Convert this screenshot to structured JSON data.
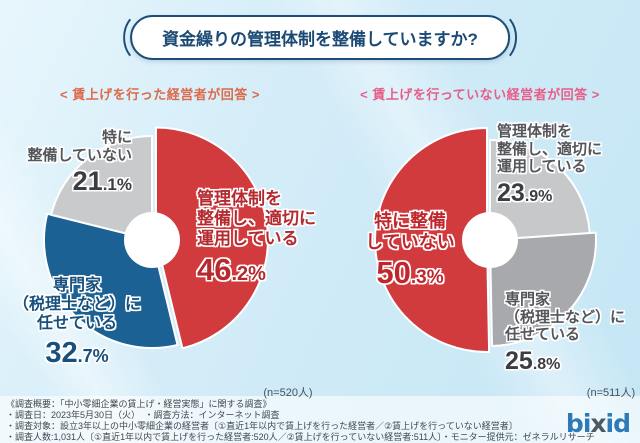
{
  "title": "資金繰りの管理体制を整備していますか?",
  "groups": [
    {
      "heading": "< 賃上げを行った経営者が回答 >",
      "heading_color": "#dd6a4b",
      "n_label": "(n=520人)",
      "callouts": {
        "gray": {
          "lines": [
            "特に",
            "整備していない"
          ],
          "pct_main": "21",
          "pct_frac": ".1%"
        },
        "red": {
          "lines": [
            "管理体制を",
            "整備し、適切に",
            "運用している"
          ],
          "pct_main": "46",
          "pct_frac": ".2%"
        },
        "blue": {
          "lines": [
            "専門家",
            "（税理士など）に",
            "任せている"
          ],
          "pct_main": "32",
          "pct_frac": ".7%"
        }
      }
    },
    {
      "heading": "< 賃上げを行っていない経営者が回答 >",
      "heading_color": "#e75e88",
      "n_label": "(n=511人)",
      "callouts": {
        "gray_top": {
          "lines": [
            "管理体制を",
            "整備し、適切に",
            "運用している"
          ],
          "pct_main": "23",
          "pct_frac": ".9%"
        },
        "red": {
          "lines": [
            "特に整備",
            "していない"
          ],
          "pct_main": "50",
          "pct_frac": ".3%"
        },
        "gray_bottom": {
          "lines": [
            "専門家",
            "（税理士など）に",
            "任せている"
          ],
          "pct_main": "25",
          "pct_frac": ".8%"
        }
      }
    }
  ],
  "chart_data": [
    {
      "type": "pie",
      "donut": true,
      "title": "賃上げを行った経営者が回答",
      "n": 520,
      "labels": [
        "管理体制を整備し、適切に運用している",
        "専門家（税理士など）に任せている",
        "特に整備していない"
      ],
      "values": [
        46.2,
        32.7,
        21.1
      ],
      "colors": [
        "#d23b3e",
        "#1b6193",
        "#c9cacc"
      ],
      "start_angle_deg": 0,
      "direction": "clockwise"
    },
    {
      "type": "pie",
      "donut": true,
      "title": "賃上げを行っていない経営者が回答",
      "n": 511,
      "labels": [
        "管理体制を整備し、適切に運用している",
        "専門家（税理士など）に任せている",
        "特に整備していない"
      ],
      "values": [
        23.9,
        25.8,
        50.3
      ],
      "colors": [
        "#c7c8ca",
        "#a8a9ad",
        "#d23b3e"
      ],
      "start_angle_deg": 0,
      "direction": "clockwise"
    }
  ],
  "footer": {
    "lines": [
      "《調査概要：「中小零細企業の賃上げ・経営実態」に関する調査》",
      "・調査日：2023年5月30日（火）　・調査方法：インターネット調査",
      "・調査対象：設立3年以上の中小零細企業の経営者〔①直近1年以内で賃上げを行った経営者／②賃上げを行っていない経営者〕",
      "・調査人数:1,031人〔①直近1年以内で賃上げを行った経営者:520人／②賃上げを行っていない経営者:511人〕・モニター提供元：ゼネラルリサーチ"
    ],
    "logo": {
      "prefix": "bi",
      "x": "x",
      "suffix": "id"
    }
  }
}
